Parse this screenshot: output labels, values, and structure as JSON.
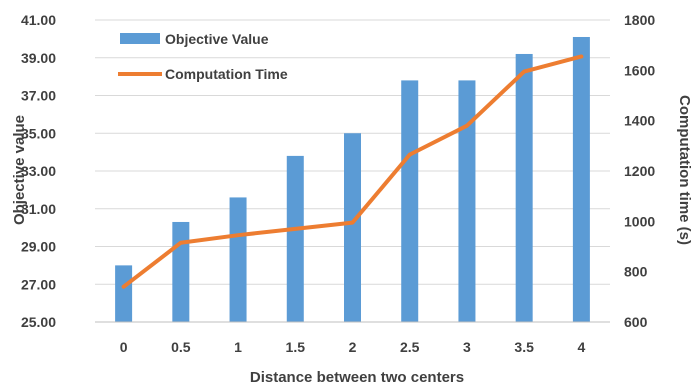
{
  "chart_data": {
    "type": "bar+line",
    "title": "",
    "categories": [
      "0",
      "0.5",
      "1",
      "1.5",
      "2",
      "2.5",
      "3",
      "3.5",
      "4"
    ],
    "series": [
      {
        "name": "Objective Value",
        "type": "bar",
        "axis": "left",
        "color": "#5b9bd5",
        "values": [
          28.0,
          30.3,
          31.6,
          33.8,
          35.0,
          37.8,
          37.8,
          39.2,
          40.1
        ]
      },
      {
        "name": "Computation Time",
        "type": "line",
        "axis": "right",
        "color": "#ed7d31",
        "values": [
          740,
          915,
          945,
          970,
          995,
          1265,
          1380,
          1595,
          1655
        ]
      }
    ],
    "xlabel": "Distance between two centers",
    "ylabel_left": "Objective value",
    "ylabel_right": "Computation time (s)",
    "ylim_left": [
      25,
      41
    ],
    "ylim_right": [
      600,
      1800
    ],
    "yticks_left": [
      "25.00",
      "27.00",
      "29.00",
      "31.00",
      "33.00",
      "35.00",
      "37.00",
      "39.00",
      "41.00"
    ],
    "yticks_right": [
      "600",
      "800",
      "1000",
      "1200",
      "1400",
      "1600",
      "1800"
    ],
    "grid": true,
    "legend": "top-left"
  }
}
